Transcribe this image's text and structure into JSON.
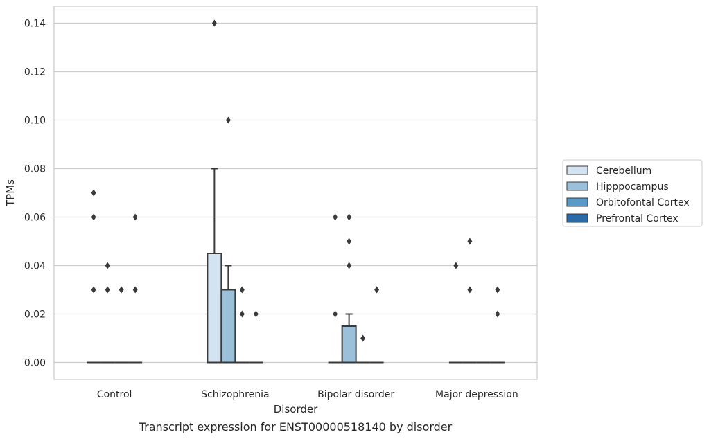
{
  "chart_data": {
    "type": "box",
    "title": "Transcript expression for ENST00000518140 by disorder",
    "xlabel": "Disorder",
    "ylabel": "TPMs",
    "ylim": [
      -0.007,
      0.147
    ],
    "yticks": [
      0.0,
      0.02,
      0.04,
      0.06,
      0.08,
      0.1,
      0.12,
      0.14
    ],
    "ytick_labels": [
      "0.00",
      "0.02",
      "0.04",
      "0.06",
      "0.08",
      "0.10",
      "0.12",
      "0.14"
    ],
    "grid": "horizontal",
    "legend_position": "right",
    "categories": [
      "Control",
      "Schizophrenia",
      "Bipolar disorder",
      "Major depression"
    ],
    "series": [
      {
        "name": "Cerebellum",
        "color": "#d4e3f1",
        "boxes": [
          {
            "category": "Control",
            "q1": 0,
            "median": 0,
            "q3": 0,
            "whisker_low": 0,
            "whisker_high": 0,
            "outliers": [
              0.07,
              0.06,
              0.03
            ]
          },
          {
            "category": "Schizophrenia",
            "q1": 0,
            "median": 0,
            "q3": 0.045,
            "whisker_low": 0,
            "whisker_high": 0.08,
            "outliers": [
              0.14
            ]
          },
          {
            "category": "Bipolar disorder",
            "q1": 0,
            "median": 0,
            "q3": 0,
            "whisker_low": 0,
            "whisker_high": 0,
            "outliers": [
              0.06,
              0.02
            ]
          },
          {
            "category": "Major depression",
            "q1": 0,
            "median": 0,
            "q3": 0,
            "whisker_low": 0,
            "whisker_high": 0,
            "outliers": [
              0.04
            ]
          }
        ]
      },
      {
        "name": "Hipppocampus",
        "color": "#9ac0da",
        "boxes": [
          {
            "category": "Control",
            "q1": 0,
            "median": 0,
            "q3": 0,
            "whisker_low": 0,
            "whisker_high": 0,
            "outliers": [
              0.04,
              0.03
            ]
          },
          {
            "category": "Schizophrenia",
            "q1": 0,
            "median": 0,
            "q3": 0.03,
            "whisker_low": 0,
            "whisker_high": 0.04,
            "outliers": [
              0.1
            ]
          },
          {
            "category": "Bipolar disorder",
            "q1": 0,
            "median": 0,
            "q3": 0.015,
            "whisker_low": 0,
            "whisker_high": 0.02,
            "outliers": [
              0.06,
              0.05,
              0.04
            ]
          },
          {
            "category": "Major depression",
            "q1": 0,
            "median": 0,
            "q3": 0,
            "whisker_low": 0,
            "whisker_high": 0,
            "outliers": [
              0.05,
              0.03
            ]
          }
        ]
      },
      {
        "name": "Orbitofontal Cortex",
        "color": "#5a9ac6",
        "boxes": [
          {
            "category": "Control",
            "q1": 0,
            "median": 0,
            "q3": 0,
            "whisker_low": 0,
            "whisker_high": 0,
            "outliers": [
              0.03
            ]
          },
          {
            "category": "Schizophrenia",
            "q1": 0,
            "median": 0,
            "q3": 0,
            "whisker_low": 0,
            "whisker_high": 0,
            "outliers": [
              0.03,
              0.02
            ]
          },
          {
            "category": "Bipolar disorder",
            "q1": 0,
            "median": 0,
            "q3": 0,
            "whisker_low": 0,
            "whisker_high": 0,
            "outliers": [
              0.01
            ]
          },
          {
            "category": "Major depression",
            "q1": 0,
            "median": 0,
            "q3": 0,
            "whisker_low": 0,
            "whisker_high": 0,
            "outliers": []
          }
        ]
      },
      {
        "name": "Prefrontal Cortex",
        "color": "#2b6aa8",
        "boxes": [
          {
            "category": "Control",
            "q1": 0,
            "median": 0,
            "q3": 0,
            "whisker_low": 0,
            "whisker_high": 0,
            "outliers": [
              0.06,
              0.03
            ]
          },
          {
            "category": "Schizophrenia",
            "q1": 0,
            "median": 0,
            "q3": 0,
            "whisker_low": 0,
            "whisker_high": 0,
            "outliers": [
              0.02
            ]
          },
          {
            "category": "Bipolar disorder",
            "q1": 0,
            "median": 0,
            "q3": 0,
            "whisker_low": 0,
            "whisker_high": 0,
            "outliers": [
              0.03
            ]
          },
          {
            "category": "Major depression",
            "q1": 0,
            "median": 0,
            "q3": 0,
            "whisker_low": 0,
            "whisker_high": 0,
            "outliers": [
              0.03,
              0.02
            ]
          }
        ]
      }
    ]
  }
}
